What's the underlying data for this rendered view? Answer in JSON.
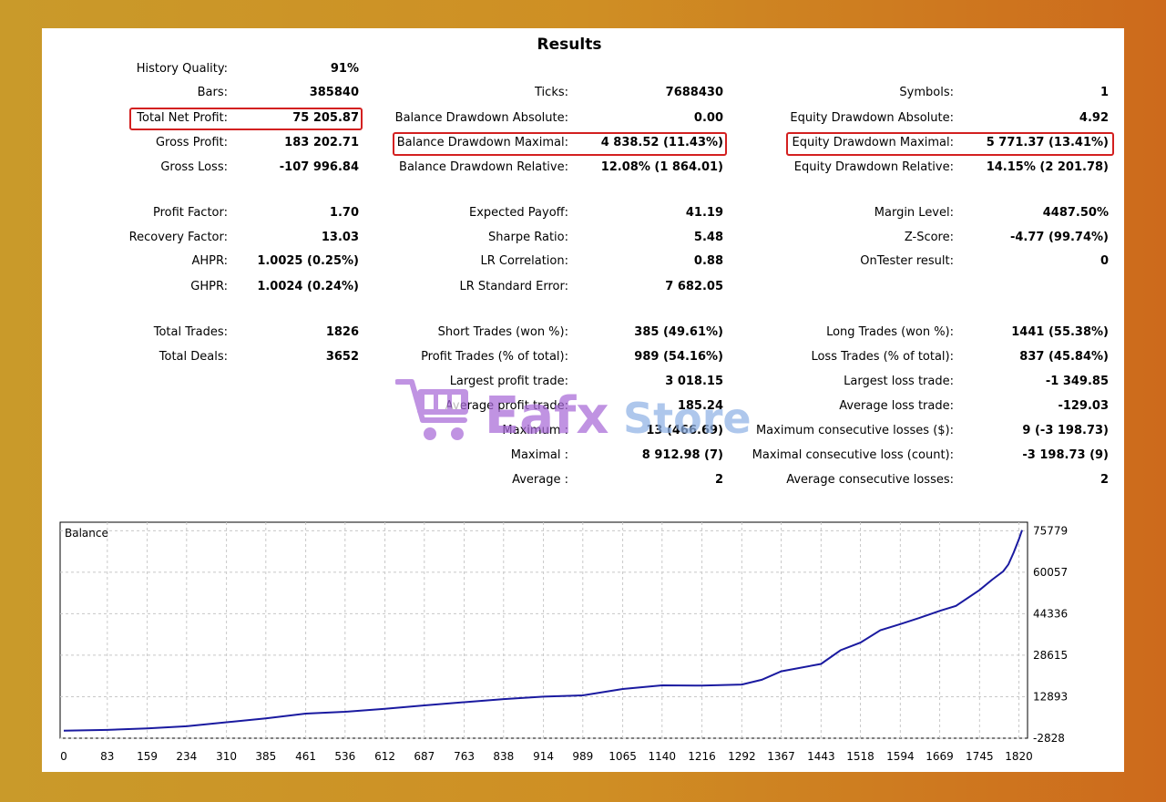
{
  "title": "Results",
  "col1": [
    {
      "label": "History Quality:",
      "value": "91%"
    },
    {
      "label": "Bars:",
      "value": "385840"
    },
    {
      "label": "Total Net Profit:",
      "value": "75 205.87"
    },
    {
      "label": "Gross Profit:",
      "value": "183 202.71"
    },
    {
      "label": "Gross Loss:",
      "value": "-107 996.84"
    },
    {
      "label": "Profit Factor:",
      "value": "1.70"
    },
    {
      "label": "Recovery Factor:",
      "value": "13.03"
    },
    {
      "label": "AHPR:",
      "value": "1.0025 (0.25%)"
    },
    {
      "label": "GHPR:",
      "value": "1.0024 (0.24%)"
    },
    {
      "label": "Total Trades:",
      "value": "1826"
    },
    {
      "label": "Total Deals:",
      "value": "3652"
    }
  ],
  "col2": [
    {
      "label": "Ticks:",
      "value": "7688430"
    },
    {
      "label": "Balance Drawdown Absolute:",
      "value": "0.00"
    },
    {
      "label": "Balance Drawdown Maximal:",
      "value": "4 838.52 (11.43%)"
    },
    {
      "label": "Balance Drawdown Relative:",
      "value": "12.08% (1 864.01)"
    },
    {
      "label": "Expected Payoff:",
      "value": "41.19"
    },
    {
      "label": "Sharpe Ratio:",
      "value": "5.48"
    },
    {
      "label": "LR Correlation:",
      "value": "0.88"
    },
    {
      "label": "LR Standard Error:",
      "value": "7 682.05"
    },
    {
      "label": "Short Trades (won %):",
      "value": "385 (49.61%)"
    },
    {
      "label": "Profit Trades (% of total):",
      "value": "989 (54.16%)"
    },
    {
      "label": "Largest profit trade:",
      "value": "3 018.15"
    },
    {
      "label": "Average profit trade:",
      "value": "185.24"
    },
    {
      "label": "Maximum :",
      "value": "13 (466.69)"
    },
    {
      "label": "Maximal :",
      "value": "8 912.98 (7)"
    },
    {
      "label": "Average :",
      "value": "2"
    }
  ],
  "col3": [
    {
      "label": "Symbols:",
      "value": "1"
    },
    {
      "label": "Equity Drawdown Absolute:",
      "value": "4.92"
    },
    {
      "label": "Equity Drawdown Maximal:",
      "value": "5 771.37 (13.41%)"
    },
    {
      "label": "Equity Drawdown Relative:",
      "value": "14.15% (2 201.78)"
    },
    {
      "label": "Margin Level:",
      "value": "4487.50%"
    },
    {
      "label": "Z-Score:",
      "value": "-4.77 (99.74%)"
    },
    {
      "label": "OnTester result:",
      "value": "0"
    },
    {
      "label": "Long Trades (won %):",
      "value": "1441 (55.38%)"
    },
    {
      "label": "Loss Trades (% of total):",
      "value": "837 (45.84%)"
    },
    {
      "label": "Largest loss trade:",
      "value": "-1 349.85"
    },
    {
      "label": "Average loss trade:",
      "value": "-129.03"
    },
    {
      "label": "Maximum consecutive losses ($):",
      "value": "9 (-3 198.73)"
    },
    {
      "label": "Maximal consecutive loss (count):",
      "value": "-3 198.73 (9)"
    },
    {
      "label": "Average consecutive losses:",
      "value": "2"
    }
  ],
  "watermark": {
    "brand_a": "Eafx",
    "brand_b": "Store"
  },
  "colors": {
    "highlight": "#d32020",
    "line": "#1a1aa0",
    "grid": "#c8c8c8"
  },
  "chart_data": {
    "type": "line",
    "title": "Balance",
    "xlim": [
      0,
      1826
    ],
    "ylim": [
      -2828,
      79000
    ],
    "x_ticks": [
      0,
      83,
      159,
      234,
      310,
      385,
      461,
      536,
      612,
      687,
      763,
      838,
      914,
      989,
      1065,
      1140,
      1216,
      1292,
      1367,
      1443,
      1518,
      1594,
      1669,
      1745,
      1820
    ],
    "y_ticks": [
      -2828,
      12893,
      28615,
      44336,
      60057,
      75779
    ],
    "series": [
      {
        "x": [
          0,
          83,
          159,
          234,
          310,
          385,
          461,
          536,
          612,
          687,
          763,
          838,
          914,
          989,
          1065,
          1140,
          1216,
          1292,
          1330,
          1367,
          1443,
          1480,
          1518,
          1556,
          1594,
          1630,
          1669,
          1700,
          1745,
          1770,
          1790,
          1800,
          1810,
          1820,
          1826
        ],
        "y": [
          0,
          300,
          900,
          1700,
          3200,
          4700,
          6500,
          7200,
          8300,
          9600,
          10800,
          12000,
          12900,
          13400,
          15800,
          17200,
          17100,
          17500,
          19300,
          22500,
          25300,
          30500,
          33400,
          38100,
          40400,
          42700,
          45400,
          47300,
          53300,
          57400,
          60400,
          63000,
          67500,
          72500,
          76000
        ]
      }
    ]
  }
}
